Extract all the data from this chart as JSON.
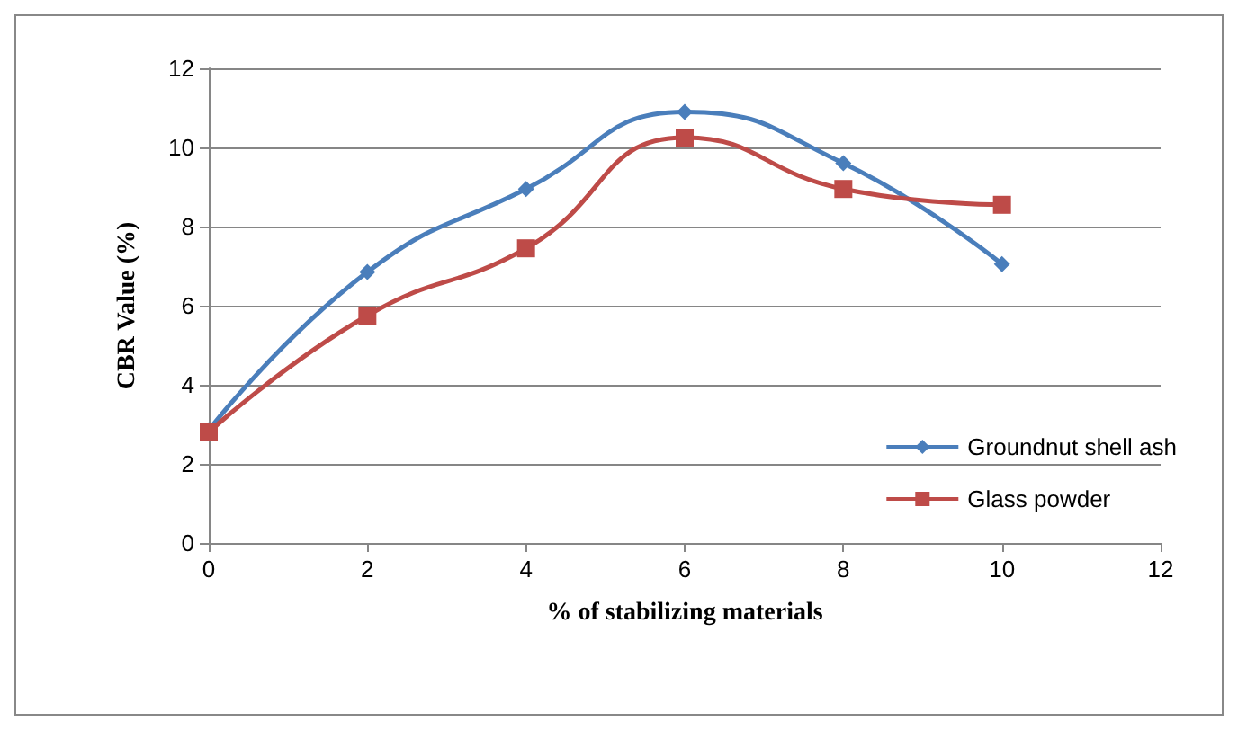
{
  "chart_data": {
    "type": "line",
    "xlabel": "% of stabilizing materials",
    "ylabel": "CBR Value (%)",
    "x": [
      0,
      2,
      4,
      6,
      8,
      10
    ],
    "series": [
      {
        "name": "Groundnut shell ash",
        "color": "#4a7ebb",
        "marker": "diamond",
        "values": [
          2.85,
          6.85,
          8.95,
          10.9,
          9.6,
          7.05
        ]
      },
      {
        "name": "Glass powder",
        "color": "#be4b48",
        "marker": "square",
        "values": [
          2.8,
          5.75,
          7.45,
          10.25,
          8.95,
          8.55
        ]
      }
    ],
    "xlim": [
      0,
      12
    ],
    "xticks": [
      0,
      2,
      4,
      6,
      8,
      10,
      12
    ],
    "ylim": [
      0,
      12
    ],
    "yticks": [
      0,
      2,
      4,
      6,
      8,
      10,
      12
    ],
    "grid": "y",
    "legend": "right"
  }
}
